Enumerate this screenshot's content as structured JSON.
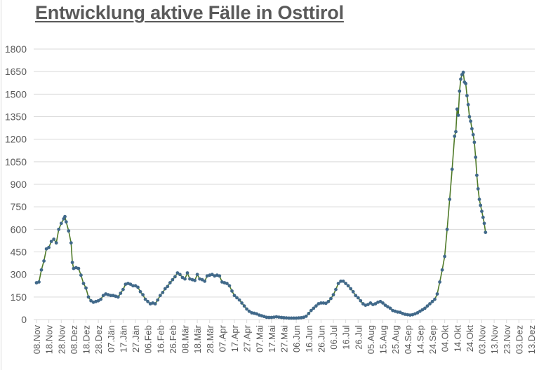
{
  "chart_data": {
    "type": "line",
    "title": "Entwicklung aktive Fälle in Osttirol",
    "xlabel": "",
    "ylabel": "",
    "ylim": [
      0,
      1800
    ],
    "yticks": [
      0,
      150,
      300,
      450,
      600,
      750,
      900,
      1050,
      1200,
      1350,
      1500,
      1650,
      1800
    ],
    "grid": true,
    "legend": "none",
    "categories": [
      "08.Nov",
      "18.Nov",
      "28.Nov",
      "08.Dez",
      "18.Dez",
      "28.Dez",
      "07.Jän",
      "17.Jän",
      "27.Jän",
      "06.Feb",
      "16.Feb",
      "26.Feb",
      "08.Mär",
      "18.Mär",
      "28.Mär",
      "07.Apr",
      "17.Apr",
      "27.Apr",
      "07.Mai",
      "17.Mai",
      "27.Mai",
      "06.Jun",
      "16.Jun",
      "26.Jun",
      "06.Jul",
      "16.Jul",
      "26.Jul",
      "05.Aug",
      "15.Aug",
      "25.Aug",
      "04.Sep",
      "14.Sep",
      "24.Sep",
      "04.Okt",
      "14.Okt",
      "24.Okt",
      "03.Nov",
      "13.Nov",
      "23.Nov",
      "03.Dez",
      "13.Dez"
    ],
    "series": [
      {
        "name": "Aktive Fälle",
        "line_color": "#4f7a28",
        "marker_color": "#41698a",
        "points": [
          [
            0,
            245
          ],
          [
            2,
            250
          ],
          [
            4,
            330
          ],
          [
            6,
            390
          ],
          [
            8,
            470
          ],
          [
            10,
            480
          ],
          [
            12,
            520
          ],
          [
            14,
            535
          ],
          [
            16,
            510
          ],
          [
            18,
            600
          ],
          [
            20,
            640
          ],
          [
            22,
            670
          ],
          [
            23,
            685
          ],
          [
            24,
            650
          ],
          [
            26,
            590
          ],
          [
            28,
            510
          ],
          [
            29,
            380
          ],
          [
            30,
            340
          ],
          [
            32,
            345
          ],
          [
            34,
            340
          ],
          [
            36,
            295
          ],
          [
            38,
            240
          ],
          [
            40,
            210
          ],
          [
            42,
            150
          ],
          [
            44,
            125
          ],
          [
            46,
            115
          ],
          [
            48,
            120
          ],
          [
            50,
            125
          ],
          [
            52,
            135
          ],
          [
            54,
            160
          ],
          [
            56,
            170
          ],
          [
            58,
            165
          ],
          [
            60,
            160
          ],
          [
            62,
            160
          ],
          [
            64,
            155
          ],
          [
            66,
            150
          ],
          [
            68,
            175
          ],
          [
            70,
            200
          ],
          [
            72,
            235
          ],
          [
            74,
            240
          ],
          [
            76,
            235
          ],
          [
            78,
            225
          ],
          [
            80,
            225
          ],
          [
            82,
            215
          ],
          [
            84,
            185
          ],
          [
            86,
            165
          ],
          [
            88,
            135
          ],
          [
            90,
            120
          ],
          [
            92,
            105
          ],
          [
            94,
            110
          ],
          [
            96,
            105
          ],
          [
            98,
            130
          ],
          [
            100,
            160
          ],
          [
            102,
            180
          ],
          [
            104,
            205
          ],
          [
            106,
            220
          ],
          [
            108,
            245
          ],
          [
            110,
            265
          ],
          [
            112,
            285
          ],
          [
            114,
            310
          ],
          [
            116,
            300
          ],
          [
            118,
            280
          ],
          [
            120,
            270
          ],
          [
            122,
            310
          ],
          [
            124,
            270
          ],
          [
            126,
            265
          ],
          [
            128,
            260
          ],
          [
            130,
            300
          ],
          [
            132,
            270
          ],
          [
            134,
            265
          ],
          [
            136,
            255
          ],
          [
            138,
            290
          ],
          [
            140,
            295
          ],
          [
            142,
            300
          ],
          [
            144,
            290
          ],
          [
            146,
            295
          ],
          [
            148,
            290
          ],
          [
            150,
            250
          ],
          [
            152,
            245
          ],
          [
            154,
            240
          ],
          [
            156,
            225
          ],
          [
            158,
            190
          ],
          [
            160,
            160
          ],
          [
            162,
            145
          ],
          [
            164,
            130
          ],
          [
            166,
            110
          ],
          [
            168,
            90
          ],
          [
            170,
            70
          ],
          [
            172,
            55
          ],
          [
            174,
            45
          ],
          [
            176,
            42
          ],
          [
            178,
            38
          ],
          [
            180,
            30
          ],
          [
            182,
            25
          ],
          [
            184,
            20
          ],
          [
            186,
            15
          ],
          [
            188,
            14
          ],
          [
            190,
            14
          ],
          [
            192,
            16
          ],
          [
            194,
            18
          ],
          [
            196,
            16
          ],
          [
            198,
            14
          ],
          [
            200,
            12
          ],
          [
            202,
            11
          ],
          [
            204,
            10
          ],
          [
            206,
            10
          ],
          [
            208,
            10
          ],
          [
            210,
            10
          ],
          [
            212,
            11
          ],
          [
            214,
            12
          ],
          [
            216,
            15
          ],
          [
            218,
            22
          ],
          [
            220,
            40
          ],
          [
            222,
            60
          ],
          [
            224,
            75
          ],
          [
            226,
            90
          ],
          [
            228,
            105
          ],
          [
            230,
            110
          ],
          [
            232,
            110
          ],
          [
            234,
            108
          ],
          [
            236,
            120
          ],
          [
            238,
            140
          ],
          [
            240,
            165
          ],
          [
            242,
            200
          ],
          [
            244,
            240
          ],
          [
            246,
            255
          ],
          [
            248,
            255
          ],
          [
            250,
            240
          ],
          [
            252,
            225
          ],
          [
            254,
            205
          ],
          [
            256,
            185
          ],
          [
            258,
            160
          ],
          [
            260,
            145
          ],
          [
            262,
            125
          ],
          [
            264,
            105
          ],
          [
            266,
            95
          ],
          [
            268,
            100
          ],
          [
            270,
            110
          ],
          [
            272,
            100
          ],
          [
            274,
            105
          ],
          [
            276,
            115
          ],
          [
            278,
            120
          ],
          [
            280,
            110
          ],
          [
            282,
            95
          ],
          [
            284,
            85
          ],
          [
            286,
            75
          ],
          [
            288,
            60
          ],
          [
            290,
            55
          ],
          [
            292,
            50
          ],
          [
            294,
            48
          ],
          [
            296,
            40
          ],
          [
            298,
            35
          ],
          [
            300,
            32
          ],
          [
            302,
            30
          ],
          [
            304,
            32
          ],
          [
            306,
            38
          ],
          [
            308,
            45
          ],
          [
            310,
            55
          ],
          [
            312,
            65
          ],
          [
            314,
            75
          ],
          [
            316,
            90
          ],
          [
            318,
            105
          ],
          [
            320,
            120
          ],
          [
            322,
            135
          ],
          [
            324,
            170
          ],
          [
            326,
            250
          ],
          [
            328,
            330
          ],
          [
            330,
            420
          ],
          [
            332,
            600
          ],
          [
            334,
            800
          ],
          [
            336,
            1000
          ],
          [
            338,
            1220
          ],
          [
            339,
            1250
          ],
          [
            340,
            1400
          ],
          [
            341,
            1360
          ],
          [
            342,
            1520
          ],
          [
            343,
            1600
          ],
          [
            344,
            1630
          ],
          [
            345,
            1645
          ],
          [
            346,
            1580
          ],
          [
            347,
            1570
          ],
          [
            348,
            1490
          ],
          [
            349,
            1430
          ],
          [
            350,
            1350
          ],
          [
            351,
            1320
          ],
          [
            352,
            1270
          ],
          [
            353,
            1230
          ],
          [
            354,
            1180
          ],
          [
            355,
            1080
          ],
          [
            356,
            960
          ],
          [
            357,
            870
          ],
          [
            358,
            800
          ],
          [
            359,
            760
          ],
          [
            360,
            720
          ],
          [
            361,
            680
          ],
          [
            362,
            640
          ],
          [
            363,
            580
          ]
        ]
      }
    ],
    "sampled_values_at_ticks": [
      245,
      480,
      680,
      350,
      240,
      120,
      165,
      155,
      240,
      220,
      105,
      180,
      280,
      290,
      270,
      290,
      290,
      240,
      140,
      60,
      40,
      15,
      15,
      10,
      20,
      80,
      115,
      150,
      255,
      170,
      100,
      120,
      75,
      50,
      35,
      70,
      140,
      1000,
      1640,
      1200,
      580
    ]
  }
}
